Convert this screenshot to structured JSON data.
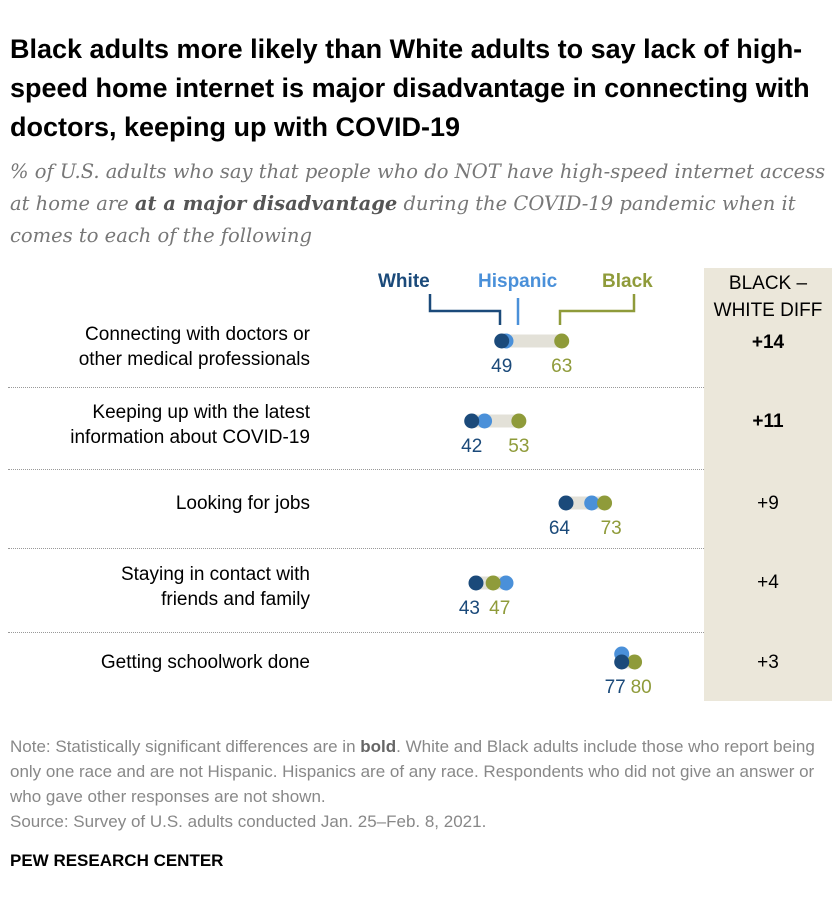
{
  "title": "Black adults more likely than White adults to say lack of high-speed home internet is major disadvantage in connecting with doctors, keeping up with COVID-19",
  "subtitle": {
    "pre": "% of U.S. adults who say that people who do NOT have high-speed internet access at home are ",
    "bold": "at a major disadvantage",
    "post": " during the COVID-19 pandemic when it comes to each of the following"
  },
  "colors": {
    "white": "#1b4a7a",
    "hispanic": "#4a90d9",
    "black": "#8f9b3a",
    "diff_bg": "#ebe7da"
  },
  "legend": {
    "white": "White",
    "hispanic": "Hispanic",
    "black": "Black"
  },
  "diff_header": [
    "BLACK –",
    "WHITE DIFF"
  ],
  "chart_data": {
    "type": "dot",
    "series_names": [
      "White",
      "Hispanic",
      "Black"
    ],
    "categories": [
      "Connecting with doctors or other medical professionals",
      "Keeping up with the latest information about COVID-19",
      "Looking for jobs",
      "Staying in contact with friends and family",
      "Getting schoolwork done"
    ],
    "rows": [
      {
        "label_lines": [
          "Connecting with doctors or",
          "other medical professionals"
        ],
        "white": 49,
        "hispanic": 50,
        "black": 63,
        "diff": "+14",
        "significant": true
      },
      {
        "label_lines": [
          "Keeping up with the latest",
          "information about COVID-19"
        ],
        "white": 42,
        "hispanic": 45,
        "black": 53,
        "diff": "+11",
        "significant": true
      },
      {
        "label_lines": [
          "Looking for jobs"
        ],
        "white": 64,
        "hispanic": 70,
        "black": 73,
        "diff": "+9",
        "significant": false
      },
      {
        "label_lines": [
          "Staying in contact with",
          "friends and family"
        ],
        "white": 43,
        "hispanic": 50,
        "black": 47,
        "diff": "+4",
        "significant": false
      },
      {
        "label_lines": [
          "Getting schoolwork done"
        ],
        "white": 77,
        "hispanic": 77,
        "black": 80,
        "diff": "+3",
        "significant": false
      }
    ],
    "labeled_values_note": "Only White and Black values are printed; Hispanic values are estimated from dot position."
  },
  "note": {
    "pre": "Note: Statistically significant differences are in ",
    "bold": "bold",
    "post": ". White and Black adults include those who report being only one race and are not Hispanic. Hispanics are of any race. Respondents who did not give an answer or who gave other responses are not shown.",
    "source": "Source: Survey of U.S. adults conducted Jan. 25–Feb. 8, 2021."
  },
  "footer": "PEW RESEARCH CENTER"
}
